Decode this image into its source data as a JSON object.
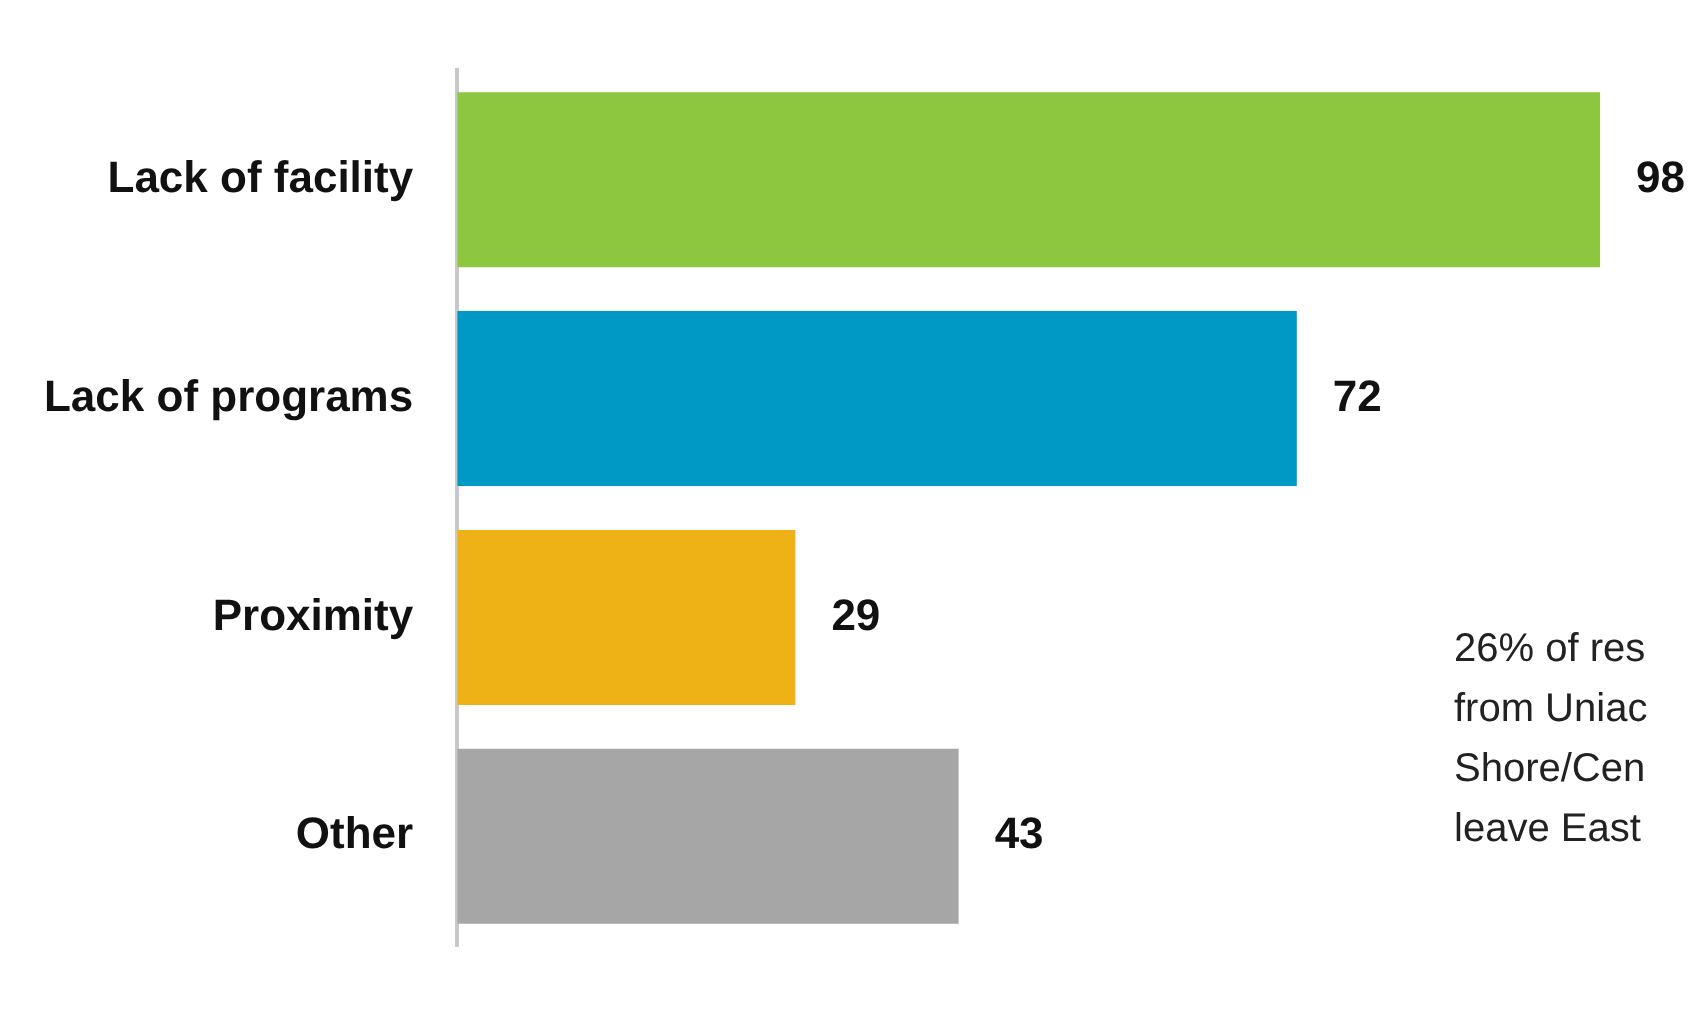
{
  "chart_data": {
    "type": "bar",
    "orientation": "horizontal",
    "categories": [
      "Lack of facility",
      "Lack of programs",
      "Proximity",
      "Other"
    ],
    "values": [
      98,
      72,
      29,
      43
    ],
    "colors": [
      "#8dc63f",
      "#0099c6",
      "#efb216",
      "#a6a6a6"
    ],
    "data_labels": true,
    "tick_labels": "y",
    "annotations": [
      "26% of res\nfrom Uniac\nShore/Cen\nleave East"
    ]
  }
}
